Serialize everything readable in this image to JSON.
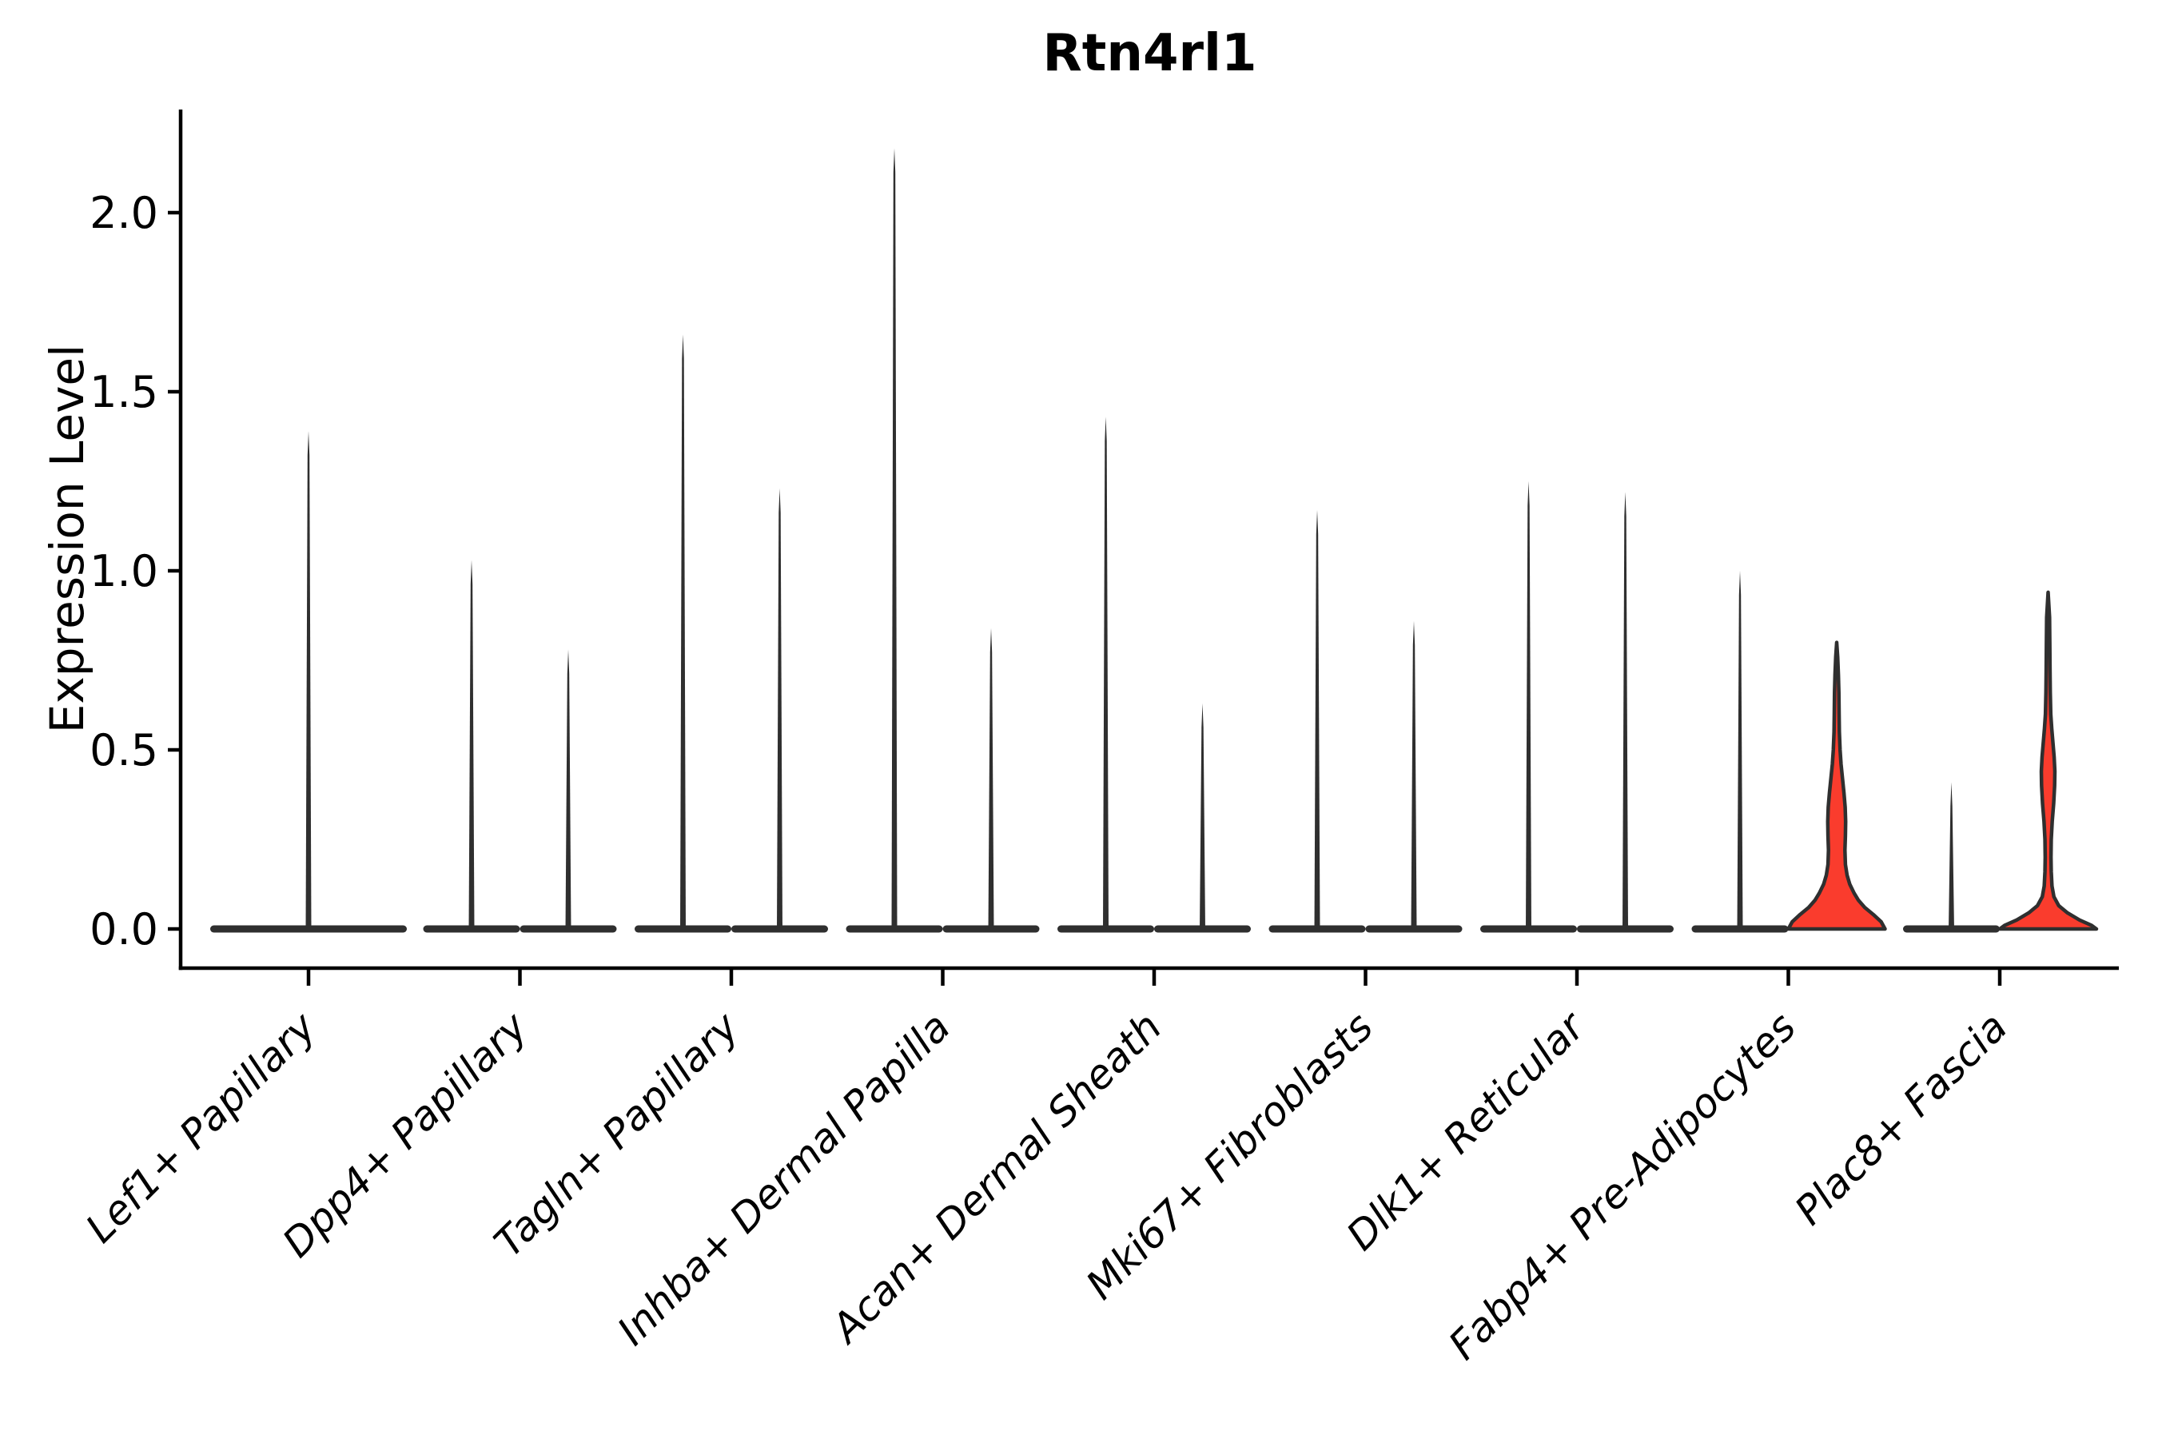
{
  "figure": {
    "background": "#ffffff"
  },
  "chart_data": {
    "type": "violin",
    "title": "Rtn4rl1",
    "ylabel": "Expression Level",
    "xlabel": "",
    "grid": false,
    "legend": null,
    "ylim": [
      -0.11,
      2.29
    ],
    "ytick_values": [
      0.0,
      0.5,
      1.0,
      1.5,
      2.0
    ],
    "ytick_labels": [
      "0.0",
      "0.5",
      "1.0",
      "1.5",
      "2.0"
    ],
    "colors": {
      "violin_fill": "#FA3C2D",
      "violin_edge": "#2F2F2F",
      "axis": "#000000",
      "text": "#000000"
    },
    "categories": [
      "Lef1+ Papillary",
      "Dpp4+ Papillary",
      "Tagln+ Papillary",
      "Inhba+ Dermal Papilla",
      "Acan+ Dermal Sheath",
      "Mki67+ Fibroblasts",
      "Dlk1+ Reticular",
      "Fabp4+ Pre-Adipocytes",
      "Plac8+ Fascia"
    ],
    "groups": [
      {
        "category": "Lef1+ Papillary",
        "violins": [
          {
            "shape": "spike",
            "side": "center",
            "max": 1.39,
            "fill": false
          }
        ]
      },
      {
        "category": "Dpp4+ Papillary",
        "violins": [
          {
            "shape": "spike",
            "side": "left",
            "max": 1.03,
            "fill": false
          },
          {
            "shape": "spike",
            "side": "right",
            "max": 0.78,
            "fill": false
          }
        ]
      },
      {
        "category": "Tagln+ Papillary",
        "violins": [
          {
            "shape": "spike",
            "side": "left",
            "max": 1.66,
            "fill": false
          },
          {
            "shape": "spike",
            "side": "right",
            "max": 1.23,
            "fill": false
          }
        ]
      },
      {
        "category": "Inhba+ Dermal Papilla",
        "violins": [
          {
            "shape": "spike",
            "side": "left",
            "max": 2.18,
            "fill": false
          },
          {
            "shape": "spike",
            "side": "right",
            "max": 0.84,
            "fill": false
          }
        ]
      },
      {
        "category": "Acan+ Dermal Sheath",
        "violins": [
          {
            "shape": "spike",
            "side": "left",
            "max": 1.43,
            "fill": false
          },
          {
            "shape": "spike",
            "side": "right",
            "max": 0.63,
            "fill": false
          }
        ]
      },
      {
        "category": "Mki67+ Fibroblasts",
        "violins": [
          {
            "shape": "spike",
            "side": "left",
            "max": 1.17,
            "fill": false
          },
          {
            "shape": "spike",
            "side": "right",
            "max": 0.86,
            "fill": false
          }
        ]
      },
      {
        "category": "Dlk1+ Reticular",
        "violins": [
          {
            "shape": "spike",
            "side": "left",
            "max": 1.25,
            "fill": false
          },
          {
            "shape": "spike",
            "side": "right",
            "max": 1.22,
            "fill": false
          }
        ]
      },
      {
        "category": "Fabp4+ Pre-Adipocytes",
        "violins": [
          {
            "shape": "spike",
            "side": "left",
            "max": 1.0,
            "fill": false
          },
          {
            "shape": "density",
            "side": "right",
            "max": 0.8,
            "fill": true,
            "profile": [
              [
                0.0,
                1.0
              ],
              [
                0.02,
                0.92
              ],
              [
                0.04,
                0.76
              ],
              [
                0.06,
                0.58
              ],
              [
                0.08,
                0.45
              ],
              [
                0.1,
                0.36
              ],
              [
                0.125,
                0.27
              ],
              [
                0.15,
                0.215
              ],
              [
                0.18,
                0.18
              ],
              [
                0.22,
                0.17
              ],
              [
                0.26,
                0.18
              ],
              [
                0.3,
                0.185
              ],
              [
                0.34,
                0.175
              ],
              [
                0.38,
                0.15
              ],
              [
                0.42,
                0.12
              ],
              [
                0.46,
                0.09
              ],
              [
                0.5,
                0.07
              ],
              [
                0.55,
                0.055
              ],
              [
                0.6,
                0.05
              ],
              [
                0.66,
                0.045
              ],
              [
                0.71,
                0.035
              ],
              [
                0.76,
                0.02
              ],
              [
                0.8,
                0.0
              ]
            ]
          }
        ]
      },
      {
        "category": "Plac8+ Fascia",
        "violins": [
          {
            "shape": "spike",
            "side": "left",
            "max": 0.41,
            "fill": false
          },
          {
            "shape": "density",
            "side": "right",
            "max": 0.94,
            "fill": true,
            "profile": [
              [
                0.0,
                1.0
              ],
              [
                0.01,
                0.9
              ],
              [
                0.025,
                0.65
              ],
              [
                0.045,
                0.4
              ],
              [
                0.065,
                0.22
              ],
              [
                0.09,
                0.12
              ],
              [
                0.12,
                0.08
              ],
              [
                0.16,
                0.065
              ],
              [
                0.2,
                0.06
              ],
              [
                0.25,
                0.065
              ],
              [
                0.3,
                0.085
              ],
              [
                0.35,
                0.115
              ],
              [
                0.4,
                0.135
              ],
              [
                0.44,
                0.14
              ],
              [
                0.48,
                0.125
              ],
              [
                0.52,
                0.1
              ],
              [
                0.56,
                0.075
              ],
              [
                0.6,
                0.055
              ],
              [
                0.66,
                0.045
              ],
              [
                0.72,
                0.04
              ],
              [
                0.8,
                0.035
              ],
              [
                0.87,
                0.03
              ],
              [
                0.94,
                0.0
              ]
            ]
          }
        ]
      }
    ]
  }
}
